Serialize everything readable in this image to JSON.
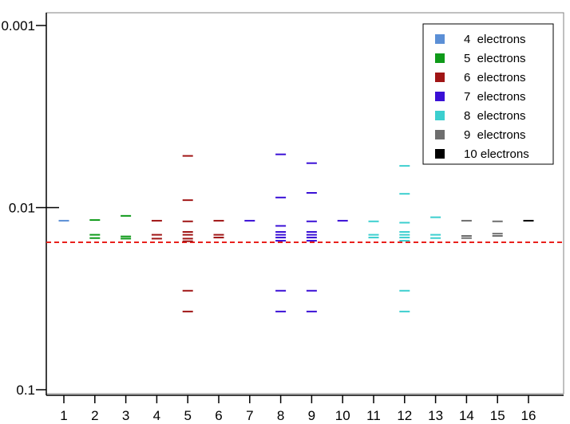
{
  "chart_data": {
    "type": "scatter",
    "title": "",
    "xlabel": "",
    "ylabel": "",
    "y_scale": "log",
    "y_reversed": true,
    "ylim": [
      0.001,
      0.1
    ],
    "y_ticks": [
      {
        "value": 0.001,
        "label": "0.001"
      },
      {
        "value": 0.01,
        "label": "0.01"
      },
      {
        "value": 0.1,
        "label": "0.1"
      }
    ],
    "x_ticks": [
      "1",
      "2",
      "3",
      "4",
      "5",
      "6",
      "7",
      "8",
      "9",
      "10",
      "11",
      "12",
      "13",
      "14",
      "15",
      "16"
    ],
    "grid": false,
    "legend_position": "top-right",
    "reference_line": {
      "value": 0.0155,
      "color": "#e8201c",
      "style": "dashed"
    },
    "series": [
      {
        "name": "4  electrons",
        "color": "#5b8fd6",
        "points": [
          {
            "x": 1,
            "y": 0.0118
          }
        ]
      },
      {
        "name": "5  electrons",
        "color": "#0f9a1a",
        "points": [
          {
            "x": 2,
            "y": 0.0117
          },
          {
            "x": 2,
            "y": 0.0141
          },
          {
            "x": 2,
            "y": 0.0147
          },
          {
            "x": 3,
            "y": 0.0111
          },
          {
            "x": 3,
            "y": 0.0144
          },
          {
            "x": 3,
            "y": 0.0148
          }
        ]
      },
      {
        "name": "6  electrons",
        "color": "#a01515",
        "points": [
          {
            "x": 4,
            "y": 0.0118
          },
          {
            "x": 4,
            "y": 0.0141
          },
          {
            "x": 4,
            "y": 0.0148
          },
          {
            "x": 5,
            "y": 0.0052
          },
          {
            "x": 5,
            "y": 0.0091
          },
          {
            "x": 5,
            "y": 0.0119
          },
          {
            "x": 5,
            "y": 0.0136
          },
          {
            "x": 5,
            "y": 0.0141
          },
          {
            "x": 5,
            "y": 0.0148
          },
          {
            "x": 5,
            "y": 0.0153
          },
          {
            "x": 5,
            "y": 0.0286
          },
          {
            "x": 5,
            "y": 0.0372
          },
          {
            "x": 6,
            "y": 0.0118
          },
          {
            "x": 6,
            "y": 0.0141
          },
          {
            "x": 6,
            "y": 0.0146
          }
        ]
      },
      {
        "name": "7  electrons",
        "color": "#3a10d6",
        "points": [
          {
            "x": 7,
            "y": 0.0118
          },
          {
            "x": 8,
            "y": 0.0051
          },
          {
            "x": 8,
            "y": 0.0088
          },
          {
            "x": 8,
            "y": 0.0126
          },
          {
            "x": 8,
            "y": 0.0136
          },
          {
            "x": 8,
            "y": 0.0141
          },
          {
            "x": 8,
            "y": 0.0146
          },
          {
            "x": 8,
            "y": 0.0152
          },
          {
            "x": 8,
            "y": 0.0286
          },
          {
            "x": 8,
            "y": 0.0372
          },
          {
            "x": 9,
            "y": 0.0057
          },
          {
            "x": 9,
            "y": 0.0083
          },
          {
            "x": 9,
            "y": 0.0119
          },
          {
            "x": 9,
            "y": 0.0136
          },
          {
            "x": 9,
            "y": 0.0141
          },
          {
            "x": 9,
            "y": 0.0146
          },
          {
            "x": 9,
            "y": 0.0152
          },
          {
            "x": 9,
            "y": 0.0286
          },
          {
            "x": 9,
            "y": 0.0372
          },
          {
            "x": 10,
            "y": 0.0118
          }
        ]
      },
      {
        "name": "8  electrons",
        "color": "#3ccfcf",
        "points": [
          {
            "x": 11,
            "y": 0.0119
          },
          {
            "x": 11,
            "y": 0.0141
          },
          {
            "x": 11,
            "y": 0.0146
          },
          {
            "x": 12,
            "y": 0.0059
          },
          {
            "x": 12,
            "y": 0.0084
          },
          {
            "x": 12,
            "y": 0.0121
          },
          {
            "x": 12,
            "y": 0.0136
          },
          {
            "x": 12,
            "y": 0.0141
          },
          {
            "x": 12,
            "y": 0.0146
          },
          {
            "x": 12,
            "y": 0.0152
          },
          {
            "x": 12,
            "y": 0.0286
          },
          {
            "x": 12,
            "y": 0.0372
          },
          {
            "x": 13,
            "y": 0.0113
          },
          {
            "x": 13,
            "y": 0.0141
          },
          {
            "x": 13,
            "y": 0.0147
          }
        ]
      },
      {
        "name": "9  electrons",
        "color": "#6e6e6e",
        "points": [
          {
            "x": 14,
            "y": 0.0118
          },
          {
            "x": 14,
            "y": 0.0143
          },
          {
            "x": 14,
            "y": 0.0147
          },
          {
            "x": 15,
            "y": 0.0119
          },
          {
            "x": 15,
            "y": 0.0139
          },
          {
            "x": 15,
            "y": 0.0143
          }
        ]
      },
      {
        "name": "10 electrons",
        "color": "#000000",
        "points": [
          {
            "x": 16,
            "y": 0.0118
          }
        ]
      }
    ]
  }
}
